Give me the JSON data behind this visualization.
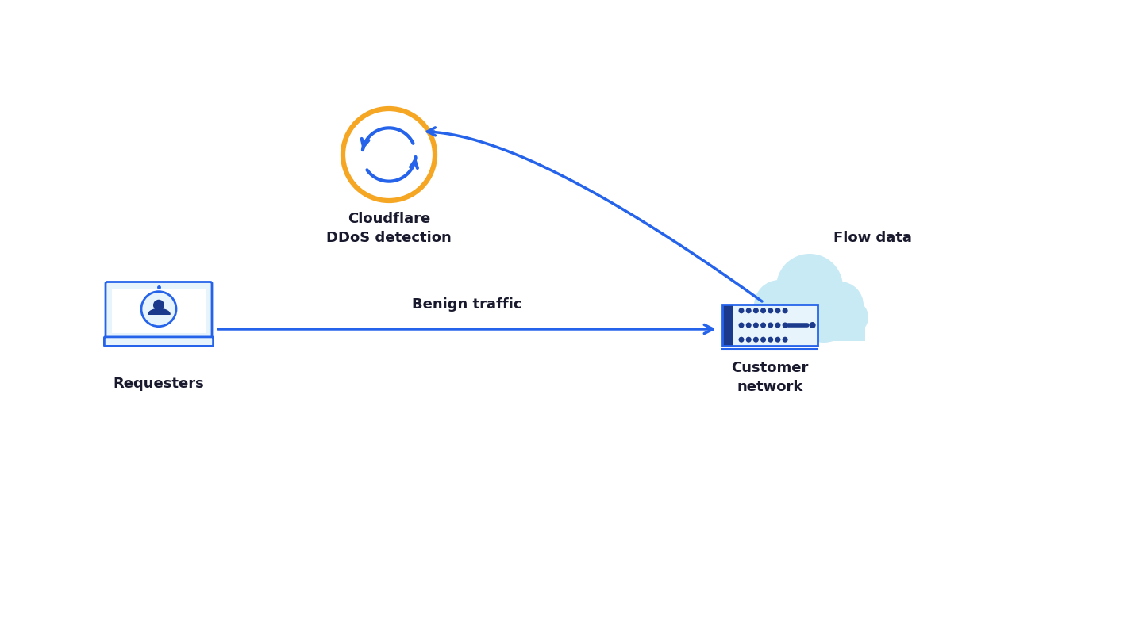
{
  "bg_color": "#ffffff",
  "blue_dark": "#1b3a8c",
  "blue_mid": "#2563EB",
  "blue_btn": "#1d4ed8",
  "blue_very_light": "#dbeafe",
  "blue_light_bg": "#e8f4fc",
  "orange": "#f5a623",
  "teal_light": "#c8eaf5",
  "gray_text": "#1a1a2e",
  "label_fontsize": 13,
  "label_fontweight": "bold",
  "nodes": {
    "requester": [
      0.155,
      0.46
    ],
    "cloudflare": [
      0.41,
      0.72
    ],
    "customer": [
      0.74,
      0.46
    ]
  },
  "labels": {
    "requester": "Requesters",
    "cloudflare": "Cloudflare\nDDoS detection",
    "customer": "Customer\nnetwork"
  },
  "arrow_labels": {
    "benign": "Benign traffic",
    "flow": "Flow data"
  }
}
